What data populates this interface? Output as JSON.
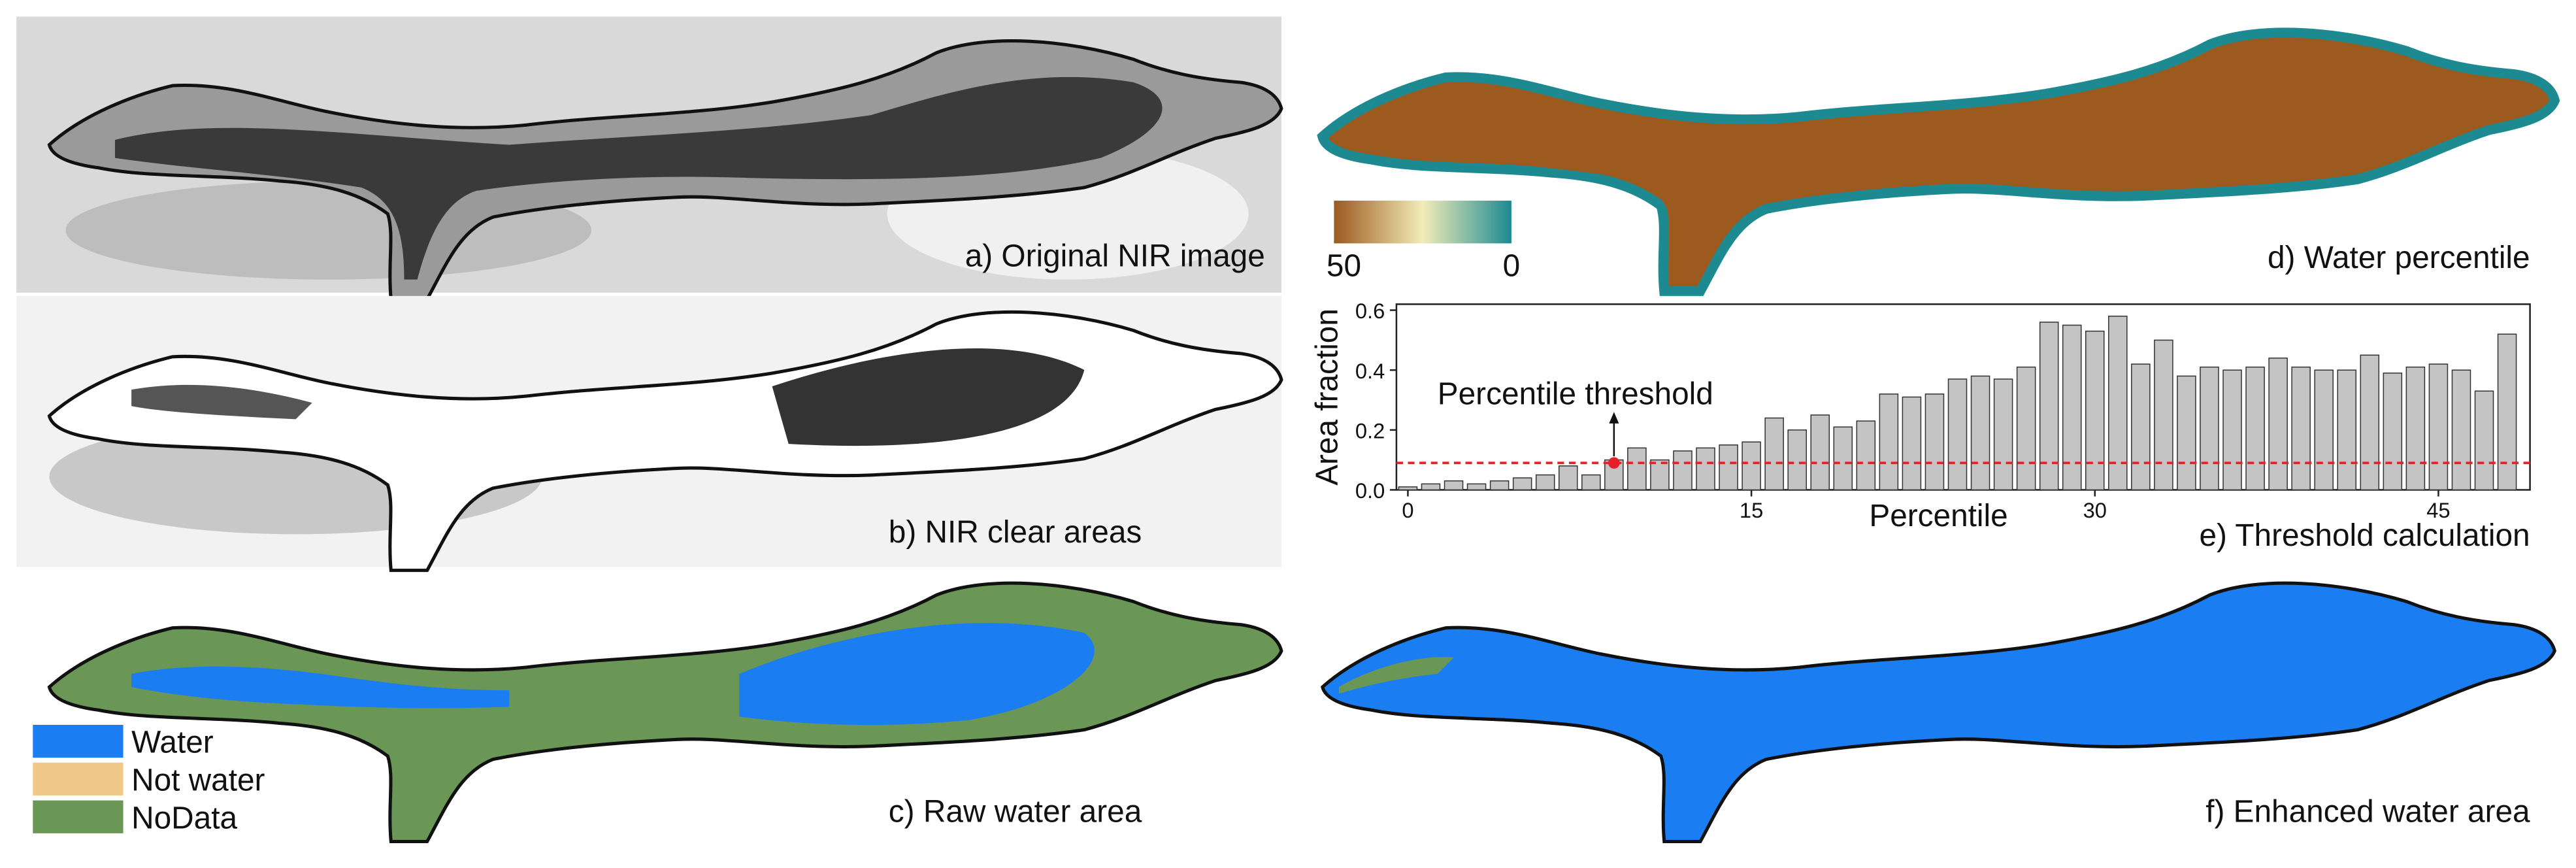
{
  "panels": {
    "a": "a) Original NIR image",
    "b": "b) NIR clear areas",
    "c": "c) Raw water area",
    "d": "d) Water percentile",
    "e": "e) Threshold calculation",
    "f": "f) Enhanced water area"
  },
  "legend": [
    {
      "label": "Water",
      "color": "#1a7ef2"
    },
    {
      "label": "Not water",
      "color": "#f0c98a"
    },
    {
      "label": "NoData",
      "color": "#6a9656"
    }
  ],
  "colorbar": {
    "left": "50",
    "right": "0",
    "colors": [
      "#9c5a1e",
      "#f2ecb8",
      "#1d8a92"
    ]
  },
  "chart_data": {
    "type": "bar",
    "ylabel": "Area fraction",
    "xlabel": "Percentile",
    "x": [
      0,
      1,
      2,
      3,
      4,
      5,
      6,
      7,
      8,
      9,
      10,
      11,
      12,
      13,
      14,
      15,
      16,
      17,
      18,
      19,
      20,
      21,
      22,
      23,
      24,
      25,
      26,
      27,
      28,
      29,
      30,
      31,
      32,
      33,
      34,
      35,
      36,
      37,
      38,
      39,
      40,
      41,
      42,
      43,
      44,
      45,
      46,
      47,
      48
    ],
    "values": [
      0.01,
      0.02,
      0.03,
      0.02,
      0.03,
      0.04,
      0.05,
      0.08,
      0.05,
      0.1,
      0.14,
      0.1,
      0.13,
      0.14,
      0.15,
      0.16,
      0.24,
      0.2,
      0.25,
      0.21,
      0.23,
      0.32,
      0.31,
      0.32,
      0.37,
      0.38,
      0.37,
      0.41,
      0.56,
      0.55,
      0.53,
      0.58,
      0.42,
      0.5,
      0.38,
      0.41,
      0.4,
      0.41,
      0.44,
      0.41,
      0.4,
      0.4,
      0.45,
      0.39,
      0.41,
      0.42,
      0.4,
      0.33,
      0.52
    ],
    "color": "#c4c4c4",
    "xlim": [
      -0.5,
      49
    ],
    "ylim": [
      0,
      0.62
    ],
    "xticks": [
      0,
      15,
      30,
      45
    ],
    "yticks": [
      {
        "value": 0,
        "label": "0.0"
      },
      0.2,
      0.4,
      0.6
    ],
    "threshold": {
      "value": 0.09,
      "color": "#e8202a"
    },
    "annotation": {
      "text": "Percentile threshold",
      "x": 9,
      "y": 0.09
    }
  }
}
